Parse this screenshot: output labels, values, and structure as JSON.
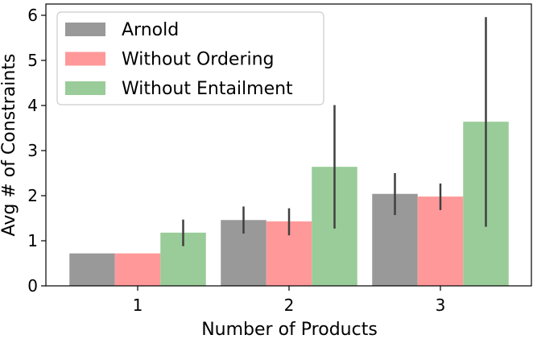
{
  "chart_data": {
    "type": "bar",
    "categories": [
      "1",
      "2",
      "3"
    ],
    "xlabel": "Number of Products",
    "ylabel": "Avg # of Constraints",
    "ylim": [
      0,
      6.25
    ],
    "yticks": [
      "0",
      "1",
      "2",
      "3",
      "4",
      "5",
      "6"
    ],
    "grid": false,
    "legend_position": "top-left",
    "series": [
      {
        "name": "Arnold",
        "color": "#999999",
        "values": [
          0.72,
          1.46,
          2.04
        ],
        "error_low": [
          0.72,
          1.16,
          1.57
        ],
        "error_high": [
          0.72,
          1.76,
          2.5
        ]
      },
      {
        "name": "Without Ordering",
        "color": "#ff9999",
        "values": [
          0.72,
          1.43,
          1.98
        ],
        "error_low": [
          0.72,
          1.12,
          1.68
        ],
        "error_high": [
          0.72,
          1.72,
          2.27
        ]
      },
      {
        "name": "Without Entailment",
        "color": "#99cc99",
        "values": [
          1.18,
          2.64,
          3.64
        ],
        "error_low": [
          0.88,
          1.27,
          1.31
        ],
        "error_high": [
          1.47,
          4.01,
          5.96
        ]
      }
    ]
  }
}
